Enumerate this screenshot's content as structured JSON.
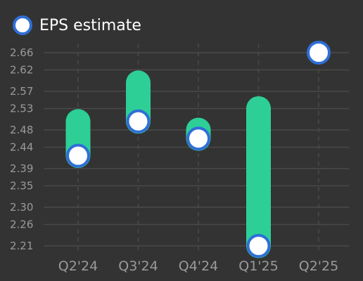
{
  "legend": {
    "label": "EPS estimate"
  },
  "colors": {
    "background": "#333333",
    "bar": "#2ecf97",
    "marker_fill": "#ffffff",
    "marker_stroke": "#2f6fd6",
    "grid": "#4a4a4a",
    "tick_label": "#9a9a9a"
  },
  "chart_data": {
    "type": "range-bar",
    "categories": [
      "Q2'24",
      "Q3'24",
      "Q4'24",
      "Q1'25",
      "Q2'25"
    ],
    "y_ticks": [
      "2.21",
      "2.26",
      "2.30",
      "2.35",
      "2.39",
      "2.44",
      "2.48",
      "2.53",
      "2.57",
      "2.62",
      "2.66"
    ],
    "ylim": [
      2.21,
      2.66
    ],
    "series": [
      {
        "name": "EPS estimate",
        "values": [
          2.42,
          2.5,
          2.46,
          2.21,
          2.66
        ]
      }
    ],
    "ranges": [
      [
        2.42,
        2.5
      ],
      [
        2.5,
        2.59
      ],
      [
        2.46,
        2.48
      ],
      [
        2.21,
        2.53
      ],
      null
    ],
    "grid": true,
    "legend_position": "top-left"
  }
}
